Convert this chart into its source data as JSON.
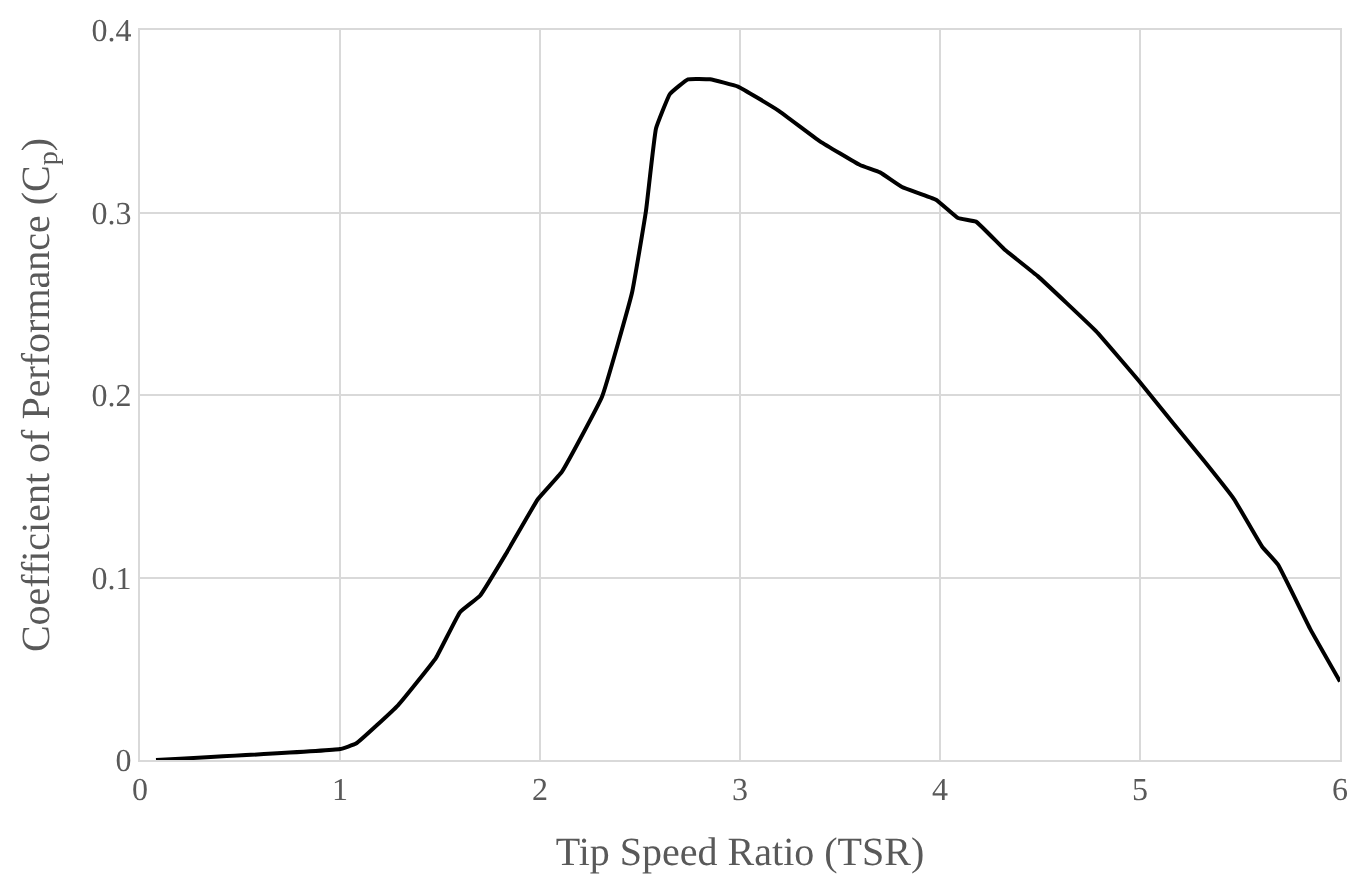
{
  "chart_data": {
    "type": "line",
    "xlabel": "Tip Speed Ratio (TSR)",
    "ylabel": "Coefficient of Performance (C$_{p}$)",
    "xlim": [
      0,
      6
    ],
    "xticks": [
      0,
      1,
      2,
      3,
      4,
      5,
      6
    ],
    "ylim": [
      0,
      0.4
    ],
    "yticks": [
      0,
      0.1,
      0.2,
      0.3,
      0.4
    ],
    "grid": true,
    "marker": "none",
    "line_style": "solid",
    "series": [
      {
        "color": "#000000",
        "x": [
          0.08,
          1.0,
          1.08,
          1.29,
          1.48,
          1.6,
          1.7,
          1.83,
          1.99,
          2.11,
          2.31,
          2.46,
          2.53,
          2.58,
          2.65,
          2.74,
          2.85,
          2.99,
          3.19,
          3.4,
          3.6,
          3.7,
          3.81,
          3.98,
          4.09,
          4.18,
          4.32,
          4.49,
          4.78,
          5.0,
          5.17,
          5.32,
          5.47,
          5.61,
          5.69,
          5.85,
          6.0
        ],
        "values": [
          0.0,
          0.006,
          0.009,
          0.03,
          0.056,
          0.081,
          0.09,
          0.113,
          0.143,
          0.158,
          0.199,
          0.256,
          0.301,
          0.346,
          0.365,
          0.373,
          0.373,
          0.369,
          0.356,
          0.339,
          0.326,
          0.322,
          0.314,
          0.307,
          0.297,
          0.295,
          0.28,
          0.265,
          0.235,
          0.207,
          0.184,
          0.164,
          0.143,
          0.117,
          0.107,
          0.072,
          0.043
        ]
      }
    ]
  }
}
